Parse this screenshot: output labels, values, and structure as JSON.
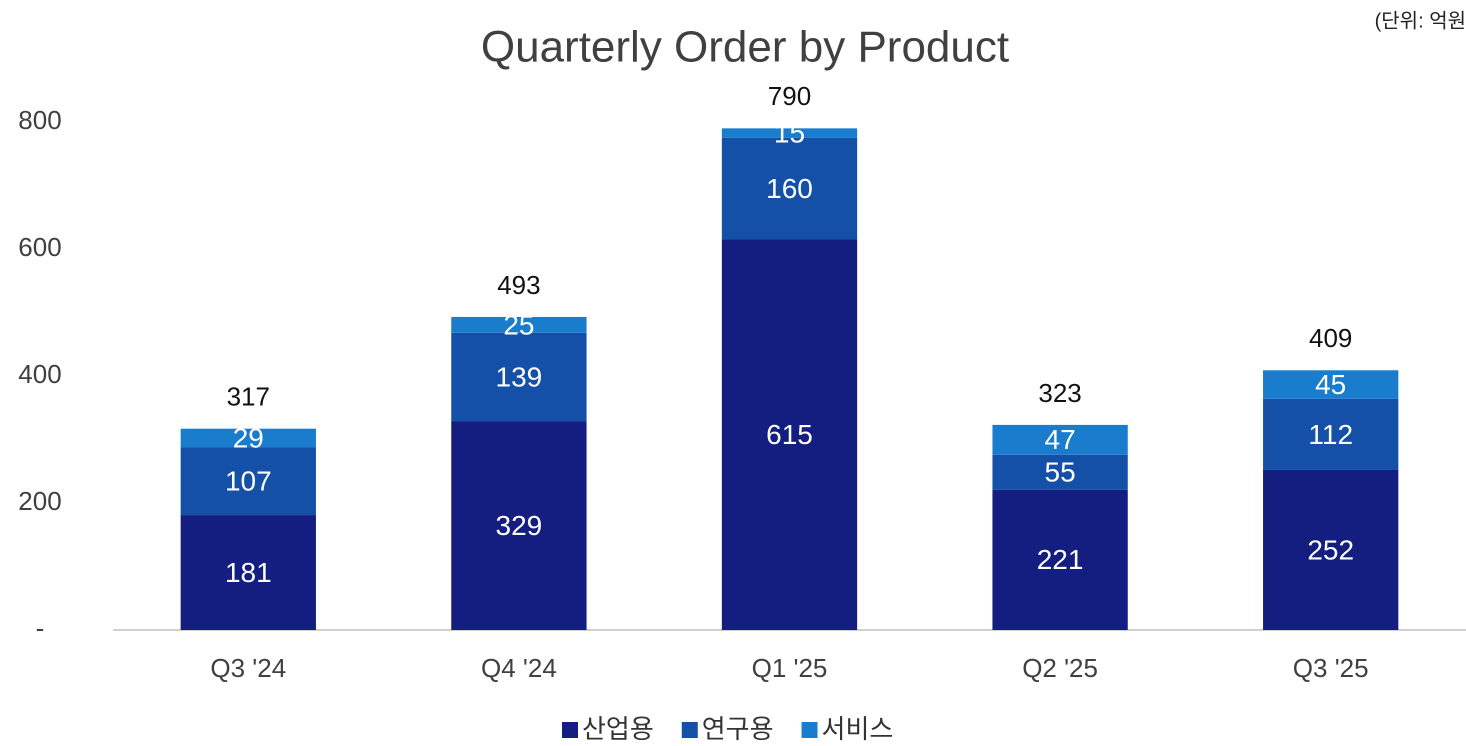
{
  "chart_data": {
    "type": "stacked_bar",
    "title": "Quarterly Order by Product",
    "unit_note": "(단위: 억원",
    "categories": [
      "Q3 '24",
      "Q4 '24",
      "Q1 '25",
      "Q2 '25",
      "Q3 '25"
    ],
    "series": [
      {
        "name": "산업용",
        "color": "#141e80",
        "values": [
          181,
          329,
          615,
          221,
          252
        ]
      },
      {
        "name": "연구용",
        "color": "#1550a8",
        "values": [
          107,
          139,
          160,
          55,
          112
        ]
      },
      {
        "name": "서비스",
        "color": "#1a7ccc",
        "values": [
          29,
          25,
          15,
          47,
          45
        ]
      }
    ],
    "totals": [
      317,
      493,
      790,
      323,
      409
    ],
    "ylim": [
      0,
      800
    ],
    "yticks": [
      {
        "value": 0,
        "label": "-"
      },
      200,
      400,
      600,
      800
    ],
    "legend": "bottom"
  }
}
